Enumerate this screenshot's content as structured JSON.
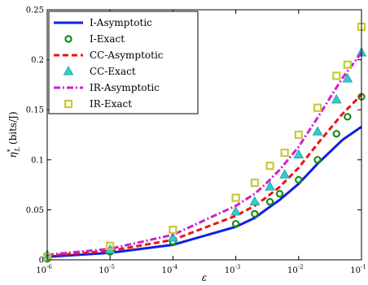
{
  "chart_data": {
    "type": "line",
    "xscale": "log",
    "xlim": [
      1e-06,
      0.1
    ],
    "ylim": [
      0,
      0.25
    ],
    "xlabel": "ε",
    "ylabel": "η*_L (bits/J)",
    "ylabel_main": "η",
    "ylabel_sup": "*",
    "ylabel_sub": "L",
    "ylabel_unit": "(bits/J)",
    "grid": false,
    "legend_position": "top-left",
    "x_ticks": [
      {
        "value": 1e-06,
        "base": "10",
        "exp": "-6"
      },
      {
        "value": 1e-05,
        "base": "10",
        "exp": "-5"
      },
      {
        "value": 0.0001,
        "base": "10",
        "exp": "-4"
      },
      {
        "value": 0.001,
        "base": "10",
        "exp": "-3"
      },
      {
        "value": 0.01,
        "base": "10",
        "exp": "-2"
      },
      {
        "value": 0.1,
        "base": "10",
        "exp": "-1"
      }
    ],
    "y_ticks": [
      {
        "value": 0,
        "label": "0"
      },
      {
        "value": 0.05,
        "label": "0.05"
      },
      {
        "value": 0.1,
        "label": "0.1"
      },
      {
        "value": 0.15,
        "label": "0.15"
      },
      {
        "value": 0.2,
        "label": "0.2"
      },
      {
        "value": 0.25,
        "label": "0.25"
      }
    ],
    "series": [
      {
        "name": "I-Asymptotic",
        "style": "line",
        "dash": "solid",
        "color": "#1020e0",
        "points": [
          [
            1e-06,
            0.003
          ],
          [
            1e-05,
            0.007
          ],
          [
            0.0001,
            0.015
          ],
          [
            0.001,
            0.033
          ],
          [
            0.002,
            0.042
          ],
          [
            0.003,
            0.05
          ],
          [
            0.005,
            0.06
          ],
          [
            0.01,
            0.076
          ],
          [
            0.02,
            0.096
          ],
          [
            0.05,
            0.12
          ],
          [
            0.1,
            0.133
          ]
        ]
      },
      {
        "name": "I-Exact",
        "style": "marker",
        "marker": "circle",
        "color": "#1a8a1a",
        "points": [
          [
            1e-06,
            0.001
          ],
          [
            1e-05,
            0.008
          ],
          [
            0.0001,
            0.018
          ],
          [
            0.001,
            0.036
          ],
          [
            0.002,
            0.046
          ],
          [
            0.0035,
            0.058
          ],
          [
            0.005,
            0.066
          ],
          [
            0.01,
            0.08
          ],
          [
            0.02,
            0.1
          ],
          [
            0.04,
            0.126
          ],
          [
            0.06,
            0.143
          ],
          [
            0.1,
            0.163
          ]
        ]
      },
      {
        "name": "CC-Asymptotic",
        "style": "line",
        "dash": "dashed",
        "color": "#ee1111",
        "points": [
          [
            1e-06,
            0.004
          ],
          [
            1e-05,
            0.009
          ],
          [
            0.0001,
            0.02
          ],
          [
            0.001,
            0.044
          ],
          [
            0.002,
            0.054
          ],
          [
            0.003,
            0.062
          ],
          [
            0.005,
            0.073
          ],
          [
            0.01,
            0.092
          ],
          [
            0.02,
            0.116
          ],
          [
            0.05,
            0.146
          ],
          [
            0.1,
            0.165
          ]
        ]
      },
      {
        "name": "CC-Exact",
        "style": "marker",
        "marker": "triangle",
        "color": "#33cccc",
        "points": [
          [
            1e-06,
            0.005
          ],
          [
            1e-05,
            0.01
          ],
          [
            0.0001,
            0.022
          ],
          [
            0.001,
            0.048
          ],
          [
            0.002,
            0.058
          ],
          [
            0.0035,
            0.073
          ],
          [
            0.006,
            0.085
          ],
          [
            0.01,
            0.105
          ],
          [
            0.02,
            0.128
          ],
          [
            0.04,
            0.16
          ],
          [
            0.06,
            0.181
          ],
          [
            0.1,
            0.207
          ]
        ]
      },
      {
        "name": "IR-Asymptotic",
        "style": "line",
        "dash": "dashdot",
        "color": "#cc22cc",
        "points": [
          [
            1e-06,
            0.005
          ],
          [
            1e-05,
            0.011
          ],
          [
            0.0001,
            0.025
          ],
          [
            0.001,
            0.054
          ],
          [
            0.002,
            0.066
          ],
          [
            0.003,
            0.076
          ],
          [
            0.005,
            0.09
          ],
          [
            0.01,
            0.113
          ],
          [
            0.02,
            0.142
          ],
          [
            0.05,
            0.182
          ],
          [
            0.1,
            0.207
          ]
        ]
      },
      {
        "name": "IR-Exact",
        "style": "marker",
        "marker": "square",
        "color": "#c8c83a",
        "points": [
          [
            1e-06,
            0.003
          ],
          [
            1e-05,
            0.014
          ],
          [
            0.0001,
            0.03
          ],
          [
            0.001,
            0.062
          ],
          [
            0.002,
            0.077
          ],
          [
            0.0035,
            0.094
          ],
          [
            0.006,
            0.107
          ],
          [
            0.01,
            0.125
          ],
          [
            0.02,
            0.152
          ],
          [
            0.04,
            0.184
          ],
          [
            0.06,
            0.195
          ],
          [
            0.1,
            0.233
          ]
        ]
      }
    ]
  }
}
